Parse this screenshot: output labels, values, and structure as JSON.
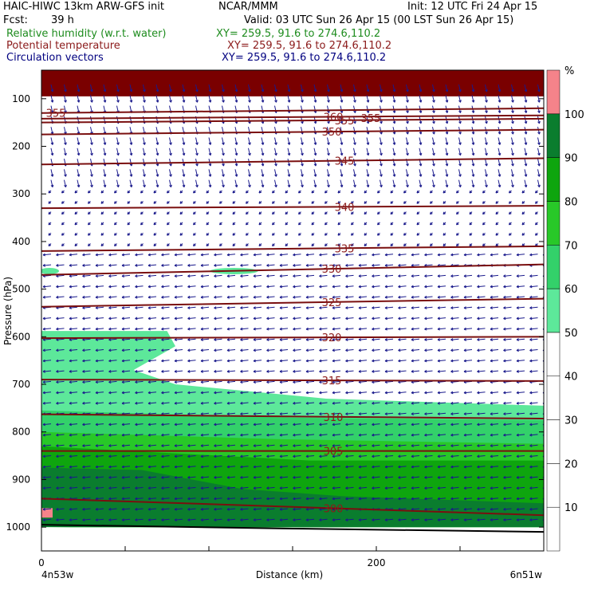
{
  "header": {
    "model": "HAIC-HIWC 13km ARW-GFS init",
    "org": "NCAR/MMM",
    "init": "Init: 12 UTC Fri 24 Apr 15",
    "fcst_label": "Fcst:",
    "fcst_value": "39 h",
    "valid": "Valid: 03 UTC Sun 26 Apr 15 (00 LST Sun 26 Apr 15)",
    "fields": [
      {
        "name": "Relative humidity (w.r.t. water)",
        "xy": "XY= 259.5, 91.6 to 274.6,110.2",
        "color": "#1e8c1e"
      },
      {
        "name": "Potential temperature",
        "xy": "XY= 259.5, 91.6 to 274.6,110.2",
        "color": "#8b1a1a"
      },
      {
        "name": "Circulation vectors",
        "xy": "XY= 259.5, 91.6 to 274.6,110.2",
        "color": "#000080"
      }
    ]
  },
  "colors": {
    "theta_contour": "#7a0f0f",
    "vector": "#1a1a8c",
    "rh_levels": [
      "#ffffff",
      "#ffffff",
      "#ffffff",
      "#ffffff",
      "#ffffff",
      "#5de89a",
      "#33d16a",
      "#28c828",
      "#0ea50e",
      "#0a7d2e",
      "#f5838a"
    ]
  },
  "chart_data": {
    "type": "cross-section",
    "xlabel": "Distance (km)",
    "ylabel": "Pressure (hPa)",
    "x_ticks": [
      0,
      200
    ],
    "xlim": [
      0,
      300
    ],
    "y_ticks": [
      100,
      200,
      300,
      400,
      500,
      600,
      700,
      800,
      900,
      1000
    ],
    "ylim": [
      40,
      1050
    ],
    "left_end_label": "4n53w",
    "right_end_label": "6n51w",
    "colorbar": {
      "unit": "%",
      "levels": [
        10,
        20,
        30,
        40,
        50,
        60,
        70,
        80,
        90,
        100
      ]
    },
    "theta_contours": [
      {
        "value": 355,
        "label": "355",
        "p_left": 130,
        "p_right": 120
      },
      {
        "value": 360,
        "label": "360",
        "p_left": 142,
        "p_right": 135
      },
      {
        "value": 355,
        "label": "355",
        "p_left": 150,
        "p_right": 142
      },
      {
        "value": 350,
        "label": "350",
        "p_left": 175,
        "p_right": 165
      },
      {
        "value": 345,
        "label": "345",
        "p_left": 238,
        "p_right": 225
      },
      {
        "value": 340,
        "label": "340",
        "p_left": 330,
        "p_right": 325
      },
      {
        "value": 335,
        "label": "335",
        "p_left": 420,
        "p_right": 410
      },
      {
        "value": 330,
        "label": "330",
        "p_left": 470,
        "p_right": 448
      },
      {
        "value": 325,
        "label": "325",
        "p_left": 537,
        "p_right": 520
      },
      {
        "value": 320,
        "label": "320",
        "p_left": 603,
        "p_right": 600
      },
      {
        "value": 315,
        "label": "315",
        "p_left": 690,
        "p_right": 693
      },
      {
        "value": 310,
        "label": "310",
        "p_left": 763,
        "p_right": 772
      },
      {
        "value": 305,
        "label": "305",
        "p_left": 840,
        "p_right": 840
      },
      {
        "value": 300,
        "label": "300",
        "p_left": 940,
        "p_right": 975
      }
    ],
    "rh_regions": [
      {
        "rh": 100,
        "description": "top band",
        "p_top": 40,
        "p_bottom": 95
      },
      {
        "rh": 60,
        "description": "band 590-700 hPa left side",
        "p_top": 588,
        "p_bottom": 700
      },
      {
        "rh": 50,
        "description": "low-level moist layer",
        "p_top": 700,
        "p_bottom": 790
      },
      {
        "rh": 70,
        "description": "moist layer",
        "p_top": 790,
        "p_bottom": 850
      },
      {
        "rh": 80,
        "description": "boundary layer",
        "p_top": 850,
        "p_bottom": 1000
      },
      {
        "rh": 90,
        "description": "near surface core",
        "p_top": 870,
        "p_bottom": 1000
      }
    ],
    "vectors": {
      "upper_pattern": "mixed northward/downward near 100-300 hPa",
      "lower_pattern": "westward flow at most levels below 400 hPa"
    }
  }
}
